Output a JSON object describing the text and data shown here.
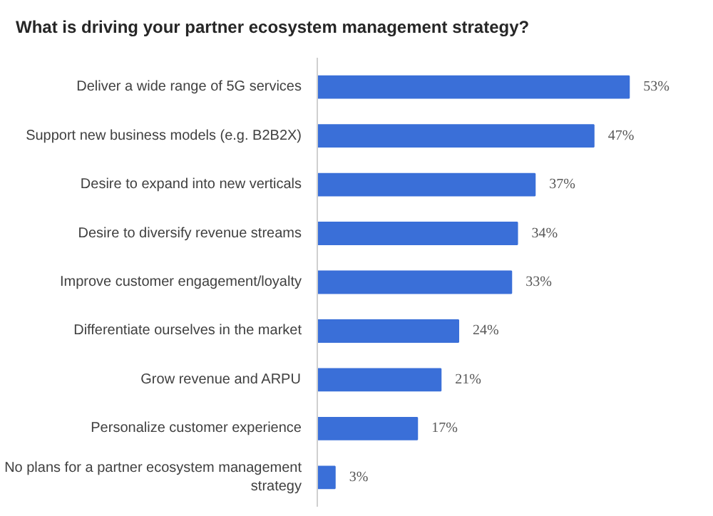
{
  "chart_data": {
    "type": "bar",
    "orientation": "horizontal",
    "title": "What is driving your partner ecosystem management strategy?",
    "categories": [
      "Deliver a wide range of 5G services",
      "Support new business models (e.g. B2B2X)",
      "Desire to expand into new verticals",
      "Desire to diversify revenue streams",
      "Improve customer engagement/loyalty",
      "Differentiate ourselves in the market",
      "Grow revenue and ARPU",
      "Personalize customer experience",
      "No plans for a partner ecosystem management strategy"
    ],
    "values": [
      53,
      47,
      37,
      34,
      33,
      24,
      21,
      17,
      3
    ],
    "value_labels": [
      "53%",
      "47%",
      "37%",
      "34%",
      "33%",
      "24%",
      "21%",
      "17%",
      "3%"
    ],
    "color": "#3a6fd8",
    "grid": false
  }
}
